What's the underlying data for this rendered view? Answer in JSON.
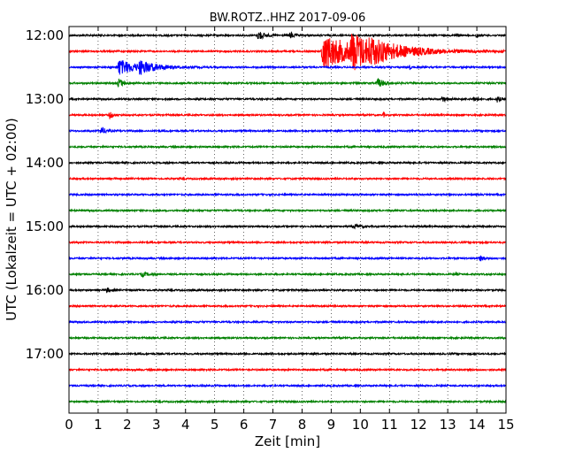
{
  "chart_data": {
    "type": "line",
    "title": "BW.ROTZ..HHZ 2017-09-06",
    "xlabel": "Zeit  [min]",
    "ylabel": "UTC (Lokalzeit = UTC + 02:00)",
    "xlim": [
      0,
      15
    ],
    "x_ticks": [
      "0",
      "1",
      "2",
      "3",
      "4",
      "5",
      "6",
      "7",
      "8",
      "9",
      "10",
      "11",
      "12",
      "13",
      "14",
      "15"
    ],
    "y_tick_labels": [
      "12:00",
      "13:00",
      "14:00",
      "15:00",
      "16:00",
      "17:00"
    ],
    "grid": "vertical-dotted",
    "row_interval_min": 15,
    "series_colors": [
      "#000000",
      "#ff0000",
      "#0000ff",
      "#008000"
    ],
    "rows": [
      {
        "start": "12:00",
        "color": "#000000",
        "events": [
          {
            "t": 6.5,
            "a": 6,
            "d": 0.3
          },
          {
            "t": 7.6,
            "a": 4,
            "d": 0.2
          },
          {
            "t": 13.3,
            "a": 3,
            "d": 0.1
          },
          {
            "t": 14.0,
            "a": 3,
            "d": 0.1
          }
        ]
      },
      {
        "start": "12:15",
        "color": "#ff0000",
        "events": [
          {
            "t": 8.7,
            "a": 20,
            "d": 2.0
          },
          {
            "t": 9.7,
            "a": 16,
            "d": 1.2
          },
          {
            "t": 10.3,
            "a": 6,
            "d": 2.5
          }
        ]
      },
      {
        "start": "12:30",
        "color": "#0000ff",
        "events": [
          {
            "t": 1.7,
            "a": 9,
            "d": 1.0
          },
          {
            "t": 2.4,
            "a": 6,
            "d": 0.9
          },
          {
            "t": 11.7,
            "a": 3,
            "d": 0.05
          }
        ]
      },
      {
        "start": "12:45",
        "color": "#008000",
        "events": [
          {
            "t": 1.7,
            "a": 5,
            "d": 0.3
          },
          {
            "t": 10.6,
            "a": 5,
            "d": 0.4
          }
        ]
      },
      {
        "start": "13:00",
        "color": "#000000",
        "events": [
          {
            "t": 12.8,
            "a": 3,
            "d": 0.3
          },
          {
            "t": 13.9,
            "a": 3,
            "d": 0.2
          },
          {
            "t": 14.7,
            "a": 3,
            "d": 0.2
          }
        ]
      },
      {
        "start": "13:15",
        "color": "#ff0000",
        "events": [
          {
            "t": 1.4,
            "a": 4,
            "d": 0.15
          },
          {
            "t": 10.8,
            "a": 3,
            "d": 0.05
          }
        ]
      },
      {
        "start": "13:30",
        "color": "#0000ff",
        "events": [
          {
            "t": 1.1,
            "a": 4,
            "d": 0.3
          }
        ]
      },
      {
        "start": "13:45",
        "color": "#008000",
        "events": []
      },
      {
        "start": "14:00",
        "color": "#000000",
        "events": []
      },
      {
        "start": "14:15",
        "color": "#ff0000",
        "events": []
      },
      {
        "start": "14:30",
        "color": "#0000ff",
        "events": []
      },
      {
        "start": "14:45",
        "color": "#008000",
        "events": []
      },
      {
        "start": "15:00",
        "color": "#000000",
        "events": [
          {
            "t": 9.8,
            "a": 2.5,
            "d": 0.3
          }
        ]
      },
      {
        "start": "15:15",
        "color": "#ff0000",
        "events": []
      },
      {
        "start": "15:30",
        "color": "#0000ff",
        "events": [
          {
            "t": 14.1,
            "a": 3,
            "d": 0.25
          }
        ]
      },
      {
        "start": "15:45",
        "color": "#008000",
        "events": [
          {
            "t": 2.5,
            "a": 2.5,
            "d": 0.3
          },
          {
            "t": 13.3,
            "a": 2,
            "d": 0.05
          }
        ]
      },
      {
        "start": "16:00",
        "color": "#000000",
        "events": [
          {
            "t": 1.3,
            "a": 2.5,
            "d": 0.2
          }
        ]
      },
      {
        "start": "16:15",
        "color": "#ff0000",
        "events": []
      },
      {
        "start": "16:30",
        "color": "#0000ff",
        "events": []
      },
      {
        "start": "16:45",
        "color": "#008000",
        "events": []
      },
      {
        "start": "17:00",
        "color": "#000000",
        "events": []
      },
      {
        "start": "17:15",
        "color": "#ff0000",
        "events": []
      },
      {
        "start": "17:30",
        "color": "#0000ff",
        "events": []
      },
      {
        "start": "17:45",
        "color": "#008000",
        "events": []
      }
    ]
  }
}
